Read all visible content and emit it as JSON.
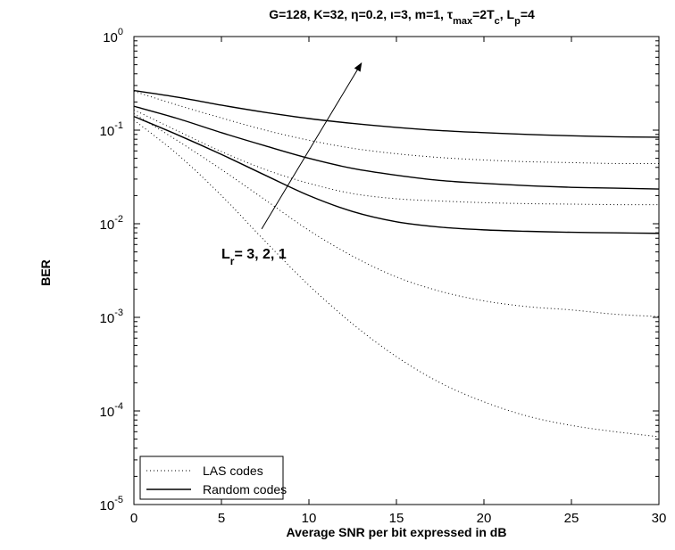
{
  "chart_data": {
    "type": "line",
    "title": "G=128, K=32, η=0.2, ι=3, m=1, τmax=2Tc, Lp=4",
    "title_parts": {
      "main": "G=128, K=32, η=0.2, ι=3, m=1, τ",
      "tau_sub": "max",
      "mid": "=2T",
      "tc_sub": "c",
      "sep": ", L",
      "lp_sub": "p",
      "end": "=4"
    },
    "xlabel": "Average SNR per bit expressed in dB",
    "ylabel": "BER",
    "xlim": [
      0,
      30
    ],
    "ylim": [
      1e-05,
      1
    ],
    "yscale": "log",
    "grid": false,
    "x_ticks": [
      "0",
      "5",
      "10",
      "15",
      "20",
      "25",
      "30"
    ],
    "y_ticks": [
      {
        "base": "10",
        "exp": "0"
      },
      {
        "base": "10",
        "exp": "-1"
      },
      {
        "base": "10",
        "exp": "-2"
      },
      {
        "base": "10",
        "exp": "-3"
      },
      {
        "base": "10",
        "exp": "-4"
      },
      {
        "base": "10",
        "exp": "-5"
      }
    ],
    "legend_placement": "bottom-left",
    "legend": [
      {
        "label": "LAS codes",
        "style": "dotted"
      },
      {
        "label": "Random codes",
        "style": "solid"
      }
    ],
    "annotation": {
      "prefix": "L",
      "sub": "r",
      "suffix": "= 3,  2,  1",
      "arrow_from": [
        7.3,
        0.0088
      ],
      "arrow_to": [
        13.0,
        0.52
      ]
    },
    "x": [
      0,
      2.5,
      5,
      7.5,
      10,
      12.5,
      15,
      17.5,
      20,
      22.5,
      25,
      27.5,
      30
    ],
    "series": [
      {
        "style": "dotted",
        "values": [
          0.26,
          0.185,
          0.135,
          0.1,
          0.078,
          0.064,
          0.056,
          0.051,
          0.048,
          0.046,
          0.045,
          0.044,
          0.044
        ]
      },
      {
        "style": "dotted",
        "values": [
          0.165,
          0.098,
          0.059,
          0.038,
          0.027,
          0.021,
          0.0185,
          0.0175,
          0.0168,
          0.0164,
          0.0162,
          0.016,
          0.016
        ]
      },
      {
        "style": "dotted",
        "values": [
          0.15,
          0.077,
          0.038,
          0.018,
          0.0085,
          0.0045,
          0.0027,
          0.0019,
          0.0015,
          0.0013,
          0.0012,
          0.00108,
          0.00102
        ]
      },
      {
        "style": "dotted",
        "values": [
          0.128,
          0.055,
          0.02,
          0.0065,
          0.0022,
          0.00085,
          0.00038,
          0.0002,
          0.000125,
          8.8e-05,
          7e-05,
          6e-05,
          5.3e-05
        ]
      },
      {
        "style": "solid",
        "values": [
          0.265,
          0.225,
          0.185,
          0.155,
          0.133,
          0.118,
          0.107,
          0.099,
          0.094,
          0.09,
          0.087,
          0.085,
          0.084
        ]
      },
      {
        "style": "solid",
        "values": [
          0.18,
          0.133,
          0.094,
          0.068,
          0.05,
          0.039,
          0.033,
          0.029,
          0.027,
          0.0255,
          0.0245,
          0.024,
          0.0235
        ]
      },
      {
        "style": "solid",
        "values": [
          0.14,
          0.089,
          0.055,
          0.033,
          0.02,
          0.0135,
          0.0105,
          0.0092,
          0.0086,
          0.0083,
          0.0081,
          0.008,
          0.0079
        ]
      }
    ]
  }
}
